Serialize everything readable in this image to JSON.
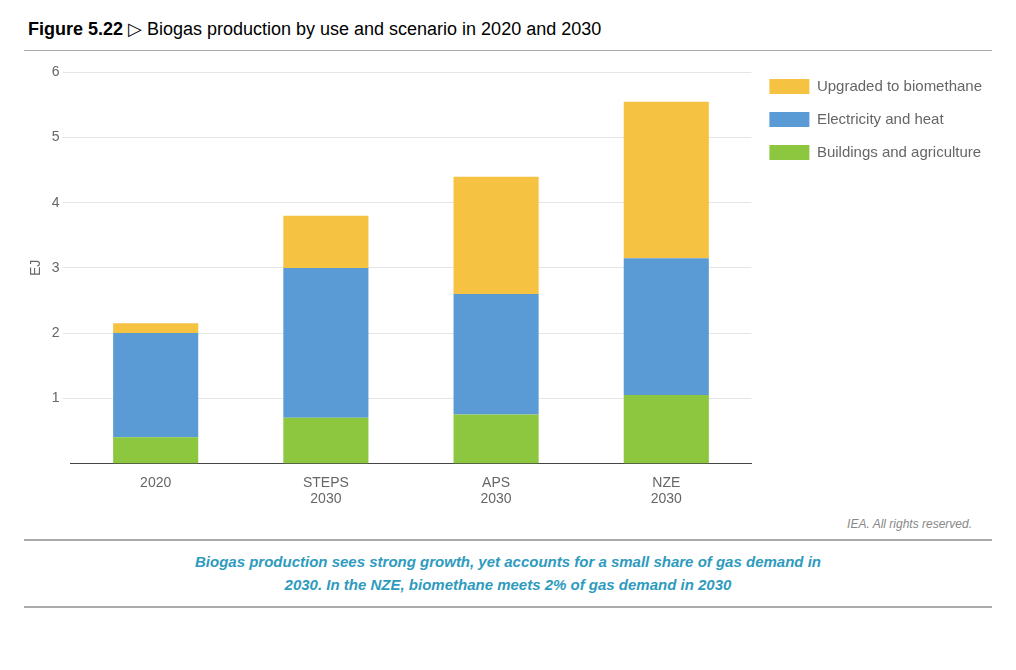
{
  "chart_data": {
    "type": "bar",
    "title": "Figure 5.22 ▷ Biogas production by use and scenario in 2020 and 2030",
    "subtitle": [
      "Biogas production sees strong growth, yet accounts for a small share of gas demand in",
      "2030. In the NZE, biomethane meets 2% of gas demand in 2030"
    ],
    "annotations": [
      "IEA. All rights reserved."
    ],
    "categories": [
      "2020",
      "STEPS\n2030",
      "APS\n2030",
      "NZE\n2030"
    ],
    "series": [
      {
        "name": "Buildings and agriculture",
        "color": "#8DC63F",
        "values": [
          0.4,
          0.7,
          0.75,
          1.05
        ]
      },
      {
        "name": "Electricity and heat",
        "color": "#5B9BD5",
        "values": [
          1.6,
          2.3,
          1.85,
          2.1
        ]
      },
      {
        "name": "Upgraded to biomethane",
        "color": "#F5C242",
        "values": [
          0.15,
          0.8,
          1.8,
          2.4
        ]
      }
    ],
    "ylabel": "EJ",
    "ylim": [
      0,
      6
    ],
    "yticks": [
      1,
      2,
      3,
      4,
      5,
      6
    ],
    "stacked": true,
    "grid": true,
    "legend": "right"
  }
}
